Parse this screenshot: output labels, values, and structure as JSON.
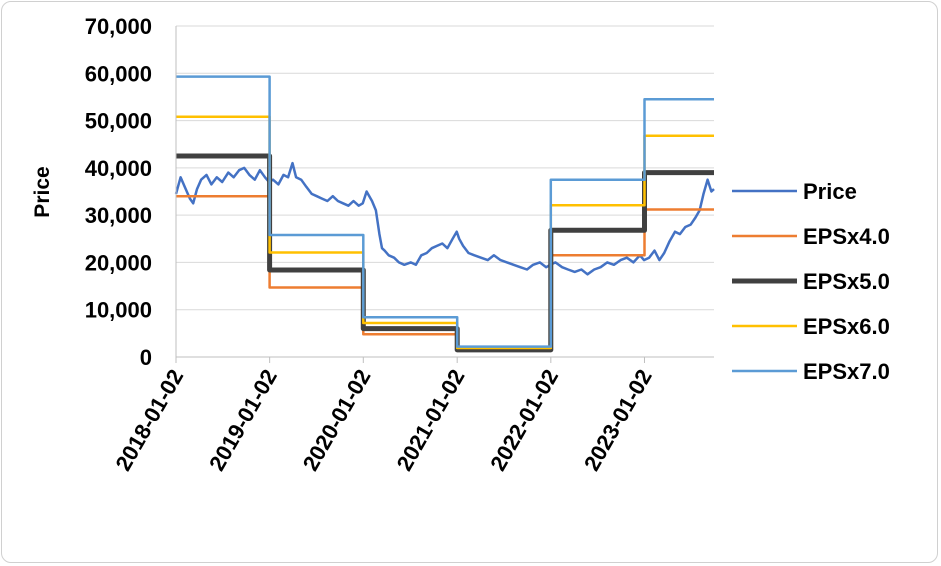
{
  "chart_data": {
    "type": "line",
    "title": "",
    "xlabel": "",
    "ylabel": "Price",
    "ylim": [
      0,
      70000
    ],
    "y_ticks": [
      "0",
      "10,000",
      "20,000",
      "30,000",
      "40,000",
      "50,000",
      "60,000",
      "70,000"
    ],
    "y_tick_values": [
      0,
      10000,
      20000,
      30000,
      40000,
      50000,
      60000,
      70000
    ],
    "x_ticks": [
      "2018-01-02",
      "2019-01-02",
      "2020-01-02",
      "2021-01-02",
      "2022-01-02",
      "2023-01-02"
    ],
    "x_range": [
      "2018-01-02",
      "2023-09-30"
    ],
    "grid": "horizontal",
    "legend_position": "right",
    "series": [
      {
        "name": "Price",
        "color": "#4472C4",
        "width": 2.5,
        "points": [
          [
            "2018-01-02",
            34500
          ],
          [
            "2018-01-20",
            38000
          ],
          [
            "2018-02-05",
            36000
          ],
          [
            "2018-02-25",
            33500
          ],
          [
            "2018-03-10",
            32500
          ],
          [
            "2018-03-25",
            35500
          ],
          [
            "2018-04-10",
            37500
          ],
          [
            "2018-05-01",
            38500
          ],
          [
            "2018-05-20",
            36500
          ],
          [
            "2018-06-10",
            38000
          ],
          [
            "2018-07-01",
            37000
          ],
          [
            "2018-07-25",
            39000
          ],
          [
            "2018-08-15",
            38000
          ],
          [
            "2018-09-05",
            39500
          ],
          [
            "2018-09-25",
            40000
          ],
          [
            "2018-10-15",
            38500
          ],
          [
            "2018-11-05",
            37500
          ],
          [
            "2018-11-25",
            39500
          ],
          [
            "2018-12-15",
            38000
          ],
          [
            "2018-12-31",
            37000
          ],
          [
            "2019-01-15",
            37500
          ],
          [
            "2019-02-05",
            36500
          ],
          [
            "2019-02-25",
            38500
          ],
          [
            "2019-03-15",
            38000
          ],
          [
            "2019-04-01",
            41000
          ],
          [
            "2019-04-15",
            38000
          ],
          [
            "2019-05-05",
            37500
          ],
          [
            "2019-05-25",
            36000
          ],
          [
            "2019-06-15",
            34500
          ],
          [
            "2019-07-05",
            34000
          ],
          [
            "2019-07-25",
            33500
          ],
          [
            "2019-08-15",
            33000
          ],
          [
            "2019-09-05",
            34000
          ],
          [
            "2019-09-25",
            33000
          ],
          [
            "2019-10-15",
            32500
          ],
          [
            "2019-11-05",
            32000
          ],
          [
            "2019-11-25",
            33000
          ],
          [
            "2019-12-15",
            32000
          ],
          [
            "2019-12-31",
            32500
          ],
          [
            "2020-01-15",
            35000
          ],
          [
            "2020-02-05",
            33000
          ],
          [
            "2020-02-20",
            31000
          ],
          [
            "2020-03-05",
            26000
          ],
          [
            "2020-03-15",
            23000
          ],
          [
            "2020-03-25",
            22500
          ],
          [
            "2020-04-10",
            21500
          ],
          [
            "2020-05-01",
            21000
          ],
          [
            "2020-05-20",
            20000
          ],
          [
            "2020-06-10",
            19500
          ],
          [
            "2020-07-05",
            20000
          ],
          [
            "2020-07-25",
            19500
          ],
          [
            "2020-08-15",
            21500
          ],
          [
            "2020-09-05",
            22000
          ],
          [
            "2020-09-25",
            23000
          ],
          [
            "2020-10-15",
            23500
          ],
          [
            "2020-11-05",
            24000
          ],
          [
            "2020-11-25",
            23000
          ],
          [
            "2020-12-15",
            25000
          ],
          [
            "2020-12-31",
            26500
          ],
          [
            "2021-01-10",
            25000
          ],
          [
            "2021-01-25",
            23500
          ],
          [
            "2021-02-15",
            22000
          ],
          [
            "2021-03-10",
            21500
          ],
          [
            "2021-04-05",
            21000
          ],
          [
            "2021-05-01",
            20500
          ],
          [
            "2021-05-25",
            21500
          ],
          [
            "2021-06-20",
            20500
          ],
          [
            "2021-07-15",
            20000
          ],
          [
            "2021-08-10",
            19500
          ],
          [
            "2021-09-05",
            19000
          ],
          [
            "2021-10-01",
            18500
          ],
          [
            "2021-10-25",
            19500
          ],
          [
            "2021-11-20",
            20000
          ],
          [
            "2021-12-15",
            19000
          ],
          [
            "2021-12-31",
            19500
          ],
          [
            "2022-01-20",
            20000
          ],
          [
            "2022-02-15",
            19000
          ],
          [
            "2022-03-10",
            18500
          ],
          [
            "2022-04-05",
            18000
          ],
          [
            "2022-05-01",
            18500
          ],
          [
            "2022-05-25",
            17500
          ],
          [
            "2022-06-20",
            18500
          ],
          [
            "2022-07-15",
            19000
          ],
          [
            "2022-08-10",
            20000
          ],
          [
            "2022-09-05",
            19500
          ],
          [
            "2022-10-01",
            20500
          ],
          [
            "2022-10-25",
            21000
          ],
          [
            "2022-11-20",
            20000
          ],
          [
            "2022-12-15",
            21500
          ],
          [
            "2022-12-31",
            20500
          ],
          [
            "2023-01-20",
            21000
          ],
          [
            "2023-02-10",
            22500
          ],
          [
            "2023-03-01",
            20500
          ],
          [
            "2023-03-20",
            22000
          ],
          [
            "2023-04-10",
            24500
          ],
          [
            "2023-05-01",
            26500
          ],
          [
            "2023-05-20",
            26000
          ],
          [
            "2023-06-10",
            27500
          ],
          [
            "2023-07-01",
            28000
          ],
          [
            "2023-07-20",
            29500
          ],
          [
            "2023-08-05",
            31000
          ],
          [
            "2023-08-20",
            34500
          ],
          [
            "2023-09-05",
            37500
          ],
          [
            "2023-09-20",
            35000
          ],
          [
            "2023-09-30",
            35500
          ]
        ]
      },
      {
        "name": "EPSx4.0",
        "color": "#ED7D31",
        "width": 2.5,
        "points": [
          [
            "2018-01-02",
            34000
          ],
          [
            "2019-01-02",
            34000
          ],
          [
            "2019-01-02",
            14700
          ],
          [
            "2020-01-02",
            14700
          ],
          [
            "2020-01-02",
            4800
          ],
          [
            "2021-01-02",
            4800
          ],
          [
            "2021-01-02",
            1400
          ],
          [
            "2022-01-02",
            1400
          ],
          [
            "2022-01-02",
            21500
          ],
          [
            "2023-01-02",
            21500
          ],
          [
            "2023-01-02",
            31200
          ],
          [
            "2023-09-30",
            31200
          ]
        ]
      },
      {
        "name": "EPSx5.0",
        "color": "#404040",
        "width": 5,
        "points": [
          [
            "2018-01-02",
            42500
          ],
          [
            "2019-01-02",
            42500
          ],
          [
            "2019-01-02",
            18400
          ],
          [
            "2020-01-02",
            18400
          ],
          [
            "2020-01-02",
            6000
          ],
          [
            "2021-01-02",
            6000
          ],
          [
            "2021-01-02",
            1500
          ],
          [
            "2022-01-02",
            1500
          ],
          [
            "2022-01-02",
            26800
          ],
          [
            "2023-01-02",
            26800
          ],
          [
            "2023-01-02",
            39000
          ],
          [
            "2023-09-30",
            39000
          ]
        ]
      },
      {
        "name": "EPSx6.0",
        "color": "#FFC000",
        "width": 2.5,
        "points": [
          [
            "2018-01-02",
            50800
          ],
          [
            "2019-01-02",
            50800
          ],
          [
            "2019-01-02",
            22100
          ],
          [
            "2020-01-02",
            22100
          ],
          [
            "2020-01-02",
            7200
          ],
          [
            "2021-01-02",
            7200
          ],
          [
            "2021-01-02",
            1900
          ],
          [
            "2022-01-02",
            1900
          ],
          [
            "2022-01-02",
            32100
          ],
          [
            "2023-01-02",
            32100
          ],
          [
            "2023-01-02",
            46800
          ],
          [
            "2023-09-30",
            46800
          ]
        ]
      },
      {
        "name": "EPSx7.0",
        "color": "#5B9BD5",
        "width": 2.5,
        "points": [
          [
            "2018-01-02",
            59300
          ],
          [
            "2019-01-02",
            59300
          ],
          [
            "2019-01-02",
            25800
          ],
          [
            "2020-01-02",
            25800
          ],
          [
            "2020-01-02",
            8400
          ],
          [
            "2021-01-02",
            8400
          ],
          [
            "2021-01-02",
            2200
          ],
          [
            "2022-01-02",
            2200
          ],
          [
            "2022-01-02",
            37500
          ],
          [
            "2023-01-02",
            37500
          ],
          [
            "2023-01-02",
            54500
          ],
          [
            "2023-09-30",
            54500
          ]
        ]
      }
    ]
  }
}
